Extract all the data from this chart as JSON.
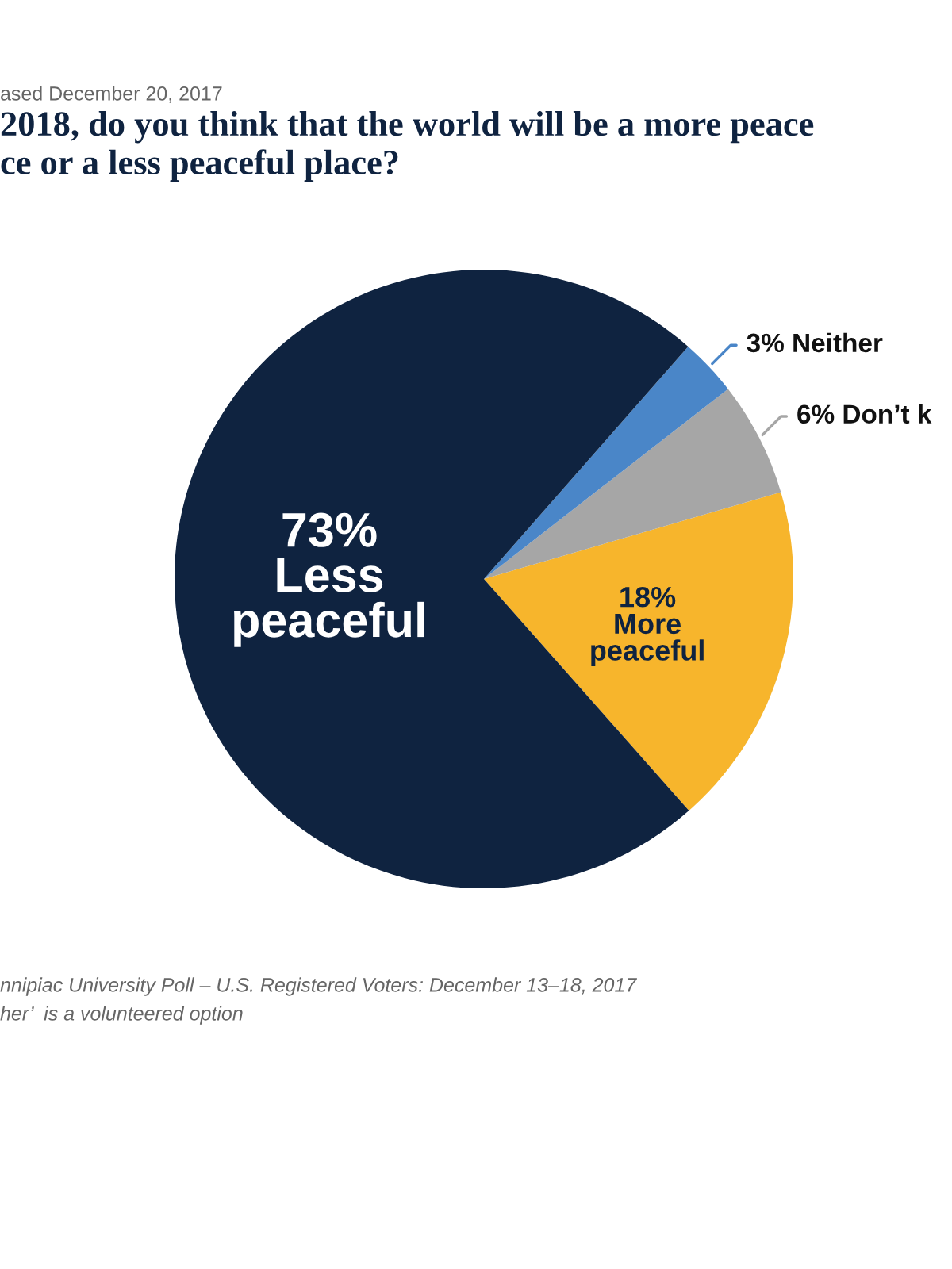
{
  "chart_data": {
    "type": "pie",
    "title": "2018, do you think that the world will be a more peace\nce or a less peaceful place?",
    "subtitle": "ased December 20, 2017",
    "categories": [
      "More\npeaceful",
      "Don’t k",
      "Neither",
      "Less\npeaceful"
    ],
    "values": [
      18,
      6,
      3,
      73
    ],
    "value_labels": [
      "18%",
      "6%",
      "3%",
      "73%"
    ],
    "colors": [
      "#f7b52c",
      "#a6a6a6",
      "#4a86c8",
      "#0f2340"
    ],
    "annotations": [
      "nnipiac University Poll – U.S. Registered Voters: December 13–18, 2017",
      "her’  is a volunteered option"
    ]
  }
}
